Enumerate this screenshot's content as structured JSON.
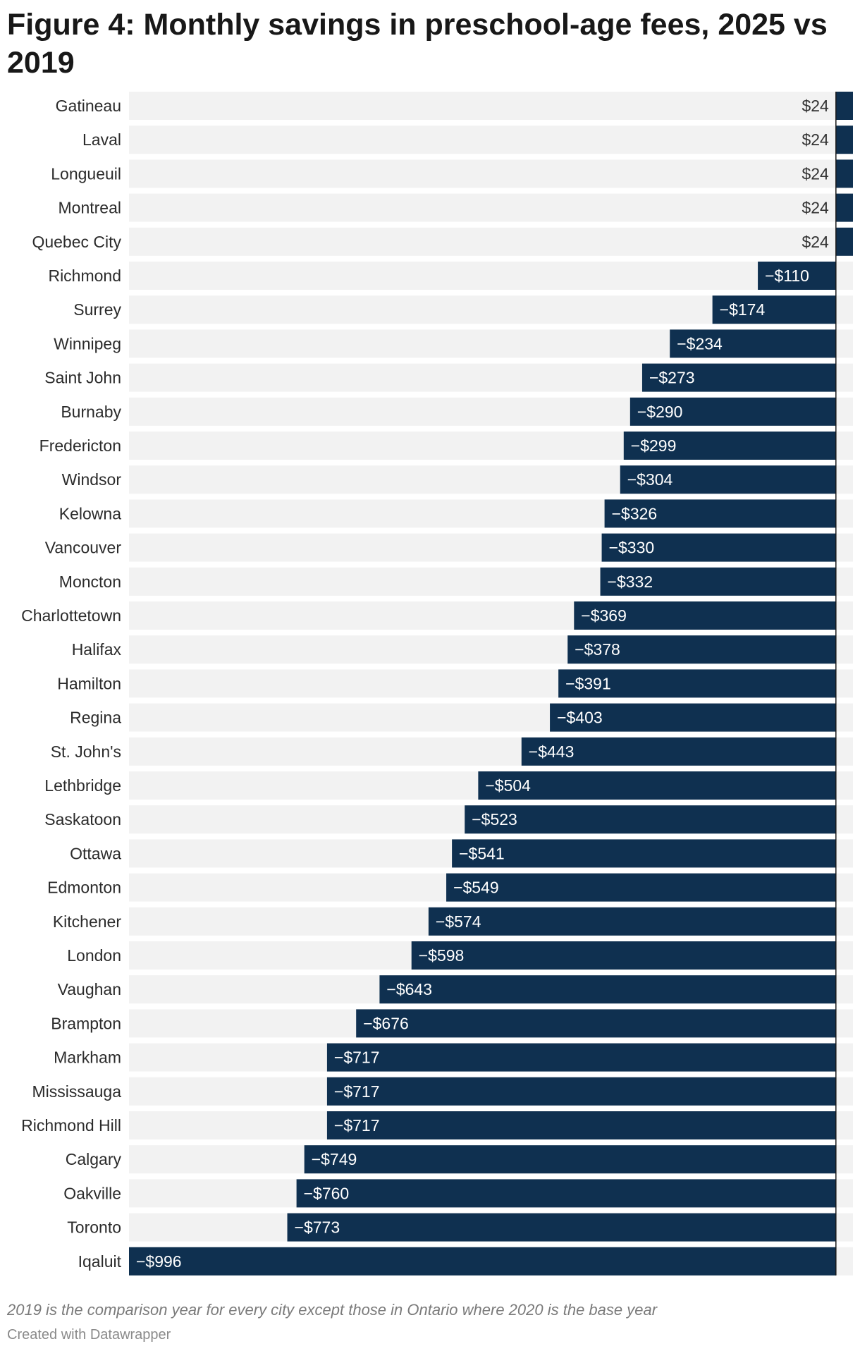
{
  "chart_data": {
    "type": "bar",
    "orientation": "horizontal",
    "title": "Figure 4: Monthly savings in preschool-age fees, 2025 vs 2019",
    "categories": [
      "Gatineau",
      "Laval",
      "Longueuil",
      "Montreal",
      "Quebec City",
      "Richmond",
      "Surrey",
      "Winnipeg",
      "Saint John",
      "Burnaby",
      "Fredericton",
      "Windsor",
      "Kelowna",
      "Vancouver",
      "Moncton",
      "Charlottetown",
      "Halifax",
      "Hamilton",
      "Regina",
      "St. John's",
      "Lethbridge",
      "Saskatoon",
      "Ottawa",
      "Edmonton",
      "Kitchener",
      "London",
      "Vaughan",
      "Brampton",
      "Markham",
      "Mississauga",
      "Richmond Hill",
      "Calgary",
      "Oakville",
      "Toronto",
      "Iqaluit"
    ],
    "values": [
      24,
      24,
      24,
      24,
      24,
      -110,
      -174,
      -234,
      -273,
      -290,
      -299,
      -304,
      -326,
      -330,
      -332,
      -369,
      -378,
      -391,
      -403,
      -443,
      -504,
      -523,
      -541,
      -549,
      -574,
      -598,
      -643,
      -676,
      -717,
      -717,
      -717,
      -749,
      -760,
      -773,
      -996
    ],
    "value_labels": [
      "$24",
      "$24",
      "$24",
      "$24",
      "$24",
      "−$110",
      "−$174",
      "−$234",
      "−$273",
      "−$290",
      "−$299",
      "−$304",
      "−$326",
      "−$330",
      "−$332",
      "−$369",
      "−$378",
      "−$391",
      "−$403",
      "−$443",
      "−$504",
      "−$523",
      "−$541",
      "−$549",
      "−$574",
      "−$598",
      "−$643",
      "−$676",
      "−$717",
      "−$717",
      "−$717",
      "−$749",
      "−$760",
      "−$773",
      "−$996"
    ],
    "xlim": [
      -996,
      24
    ],
    "xlabel": "",
    "ylabel": "",
    "grid": false,
    "legend": "none",
    "notes": "2019 is the comparison year for every city except those in Ontario where 2020 is the base year",
    "credit": "Created with Datawrapper",
    "colors": {
      "bar": "#0f3050",
      "track": "#f2f2f2",
      "zero_line": "#1a1a1a",
      "label_inside": "#ffffff",
      "label_outside": "#333333"
    }
  }
}
